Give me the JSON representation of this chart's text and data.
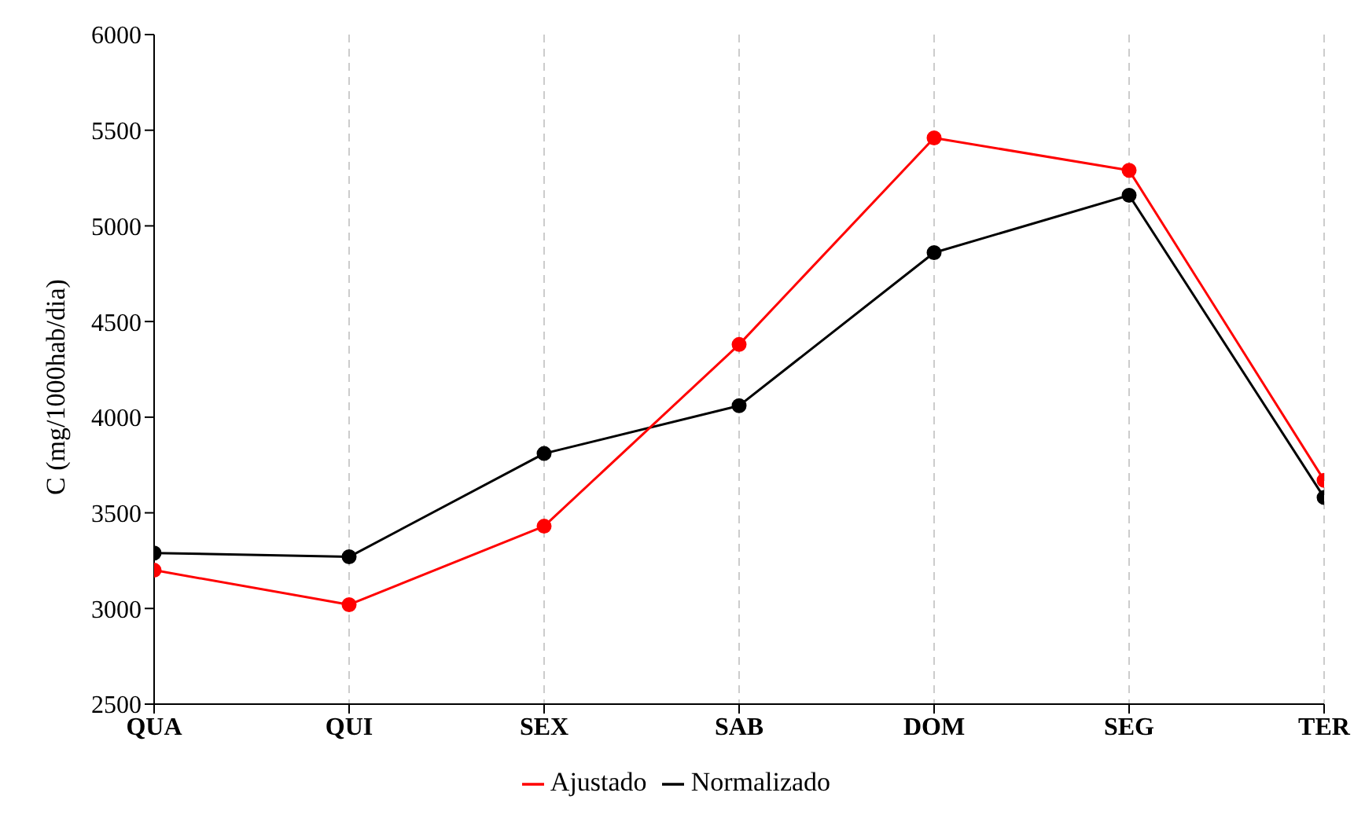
{
  "chart_data": {
    "type": "line",
    "ylabel": "C (mg/1000hab/dia)",
    "categories": [
      "QUA",
      "QUI",
      "SEX",
      "SAB",
      "DOM",
      "SEG",
      "TER"
    ],
    "series": [
      {
        "name": "Normalizado",
        "color": "#000000",
        "values": [
          3290,
          3270,
          3810,
          4060,
          4860,
          5160,
          3580
        ]
      },
      {
        "name": "Ajustado",
        "color": "#ff0000",
        "values": [
          3200,
          3020,
          3430,
          4380,
          5460,
          5290,
          3670
        ]
      }
    ],
    "ylim": [
      2500,
      6000
    ],
    "yticks": [
      2500,
      3000,
      3500,
      4000,
      4500,
      5000,
      5500,
      6000
    ],
    "grid": "x",
    "legend": "bottom",
    "marker": "circle",
    "line_style": "solid"
  }
}
